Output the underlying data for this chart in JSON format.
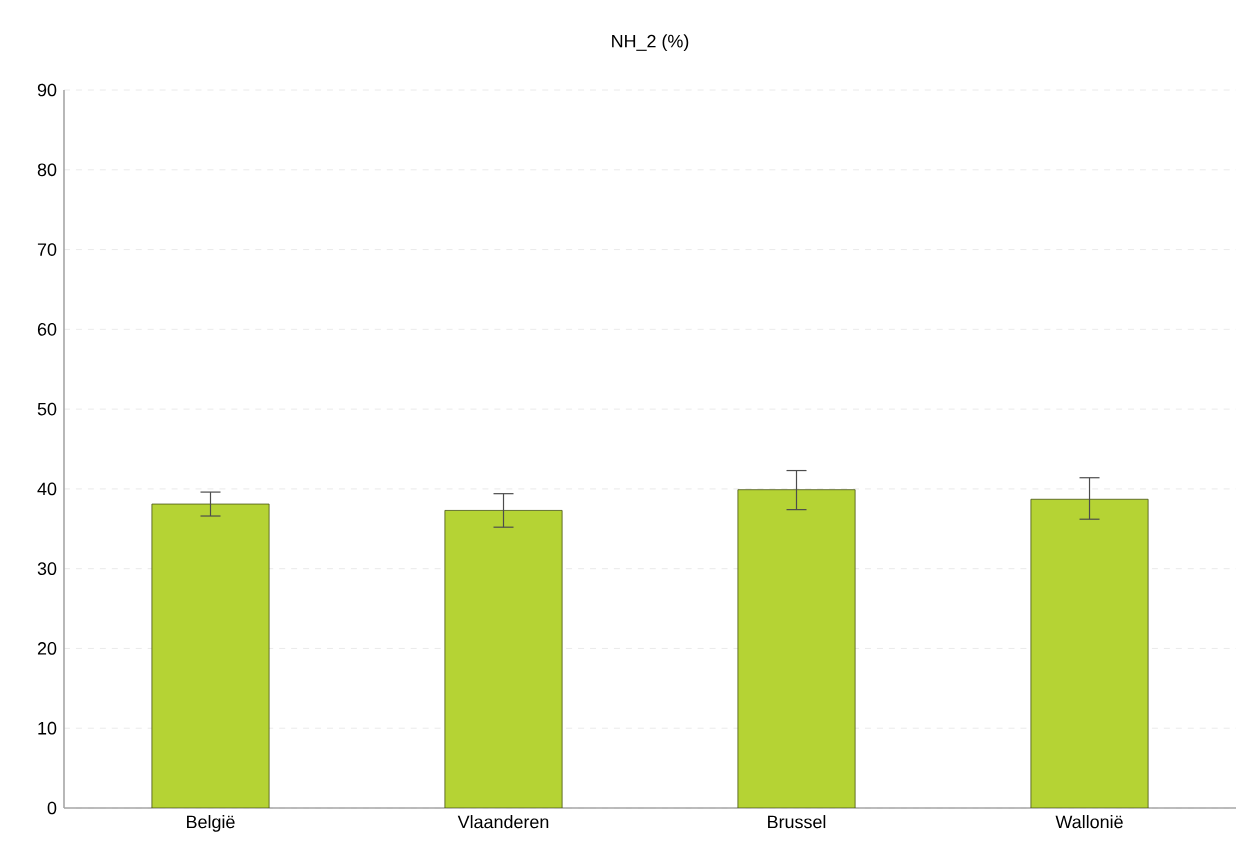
{
  "chart_data": {
    "type": "bar",
    "title": "NH_2 (%)",
    "categories": [
      "België",
      "Vlaanderen",
      "Brussel",
      "Wallonië"
    ],
    "values": [
      38.1,
      37.3,
      39.9,
      38.7
    ],
    "errors": [
      [
        36.6,
        39.6
      ],
      [
        35.2,
        39.4
      ],
      [
        37.4,
        42.3
      ],
      [
        36.2,
        41.4
      ]
    ],
    "color": "#b5d334",
    "ylim": [
      0,
      90
    ],
    "yticks": [
      0,
      10,
      20,
      30,
      40,
      50,
      60,
      70,
      80,
      90
    ],
    "grid": "y"
  }
}
